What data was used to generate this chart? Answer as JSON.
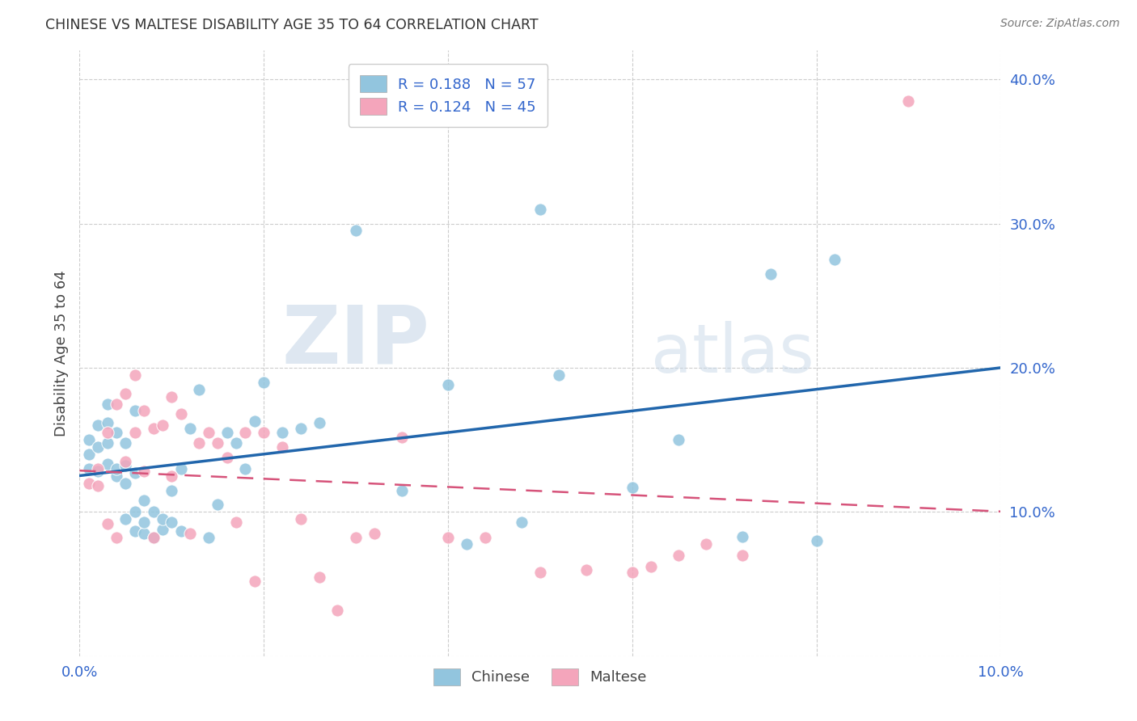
{
  "title": "CHINESE VS MALTESE DISABILITY AGE 35 TO 64 CORRELATION CHART",
  "source": "Source: ZipAtlas.com",
  "ylabel": "Disability Age 35 to 64",
  "xlim": [
    0.0,
    0.1
  ],
  "ylim": [
    0.0,
    0.42
  ],
  "xticks": [
    0.0,
    0.02,
    0.04,
    0.06,
    0.08,
    0.1
  ],
  "yticks": [
    0.0,
    0.1,
    0.2,
    0.3,
    0.4
  ],
  "chinese_color": "#92c5de",
  "maltese_color": "#f4a5bb",
  "trend_chinese_color": "#2166ac",
  "trend_maltese_color": "#d6537a",
  "legend_R_chinese": "0.188",
  "legend_N_chinese": "57",
  "legend_R_maltese": "0.124",
  "legend_N_maltese": "45",
  "watermark_zip": "ZIP",
  "watermark_atlas": "atlas",
  "chinese_x": [
    0.001,
    0.001,
    0.001,
    0.002,
    0.002,
    0.002,
    0.003,
    0.003,
    0.003,
    0.003,
    0.004,
    0.004,
    0.004,
    0.005,
    0.005,
    0.005,
    0.005,
    0.006,
    0.006,
    0.006,
    0.006,
    0.007,
    0.007,
    0.007,
    0.008,
    0.008,
    0.009,
    0.009,
    0.01,
    0.01,
    0.011,
    0.011,
    0.012,
    0.013,
    0.014,
    0.015,
    0.016,
    0.017,
    0.018,
    0.019,
    0.02,
    0.022,
    0.024,
    0.026,
    0.03,
    0.035,
    0.04,
    0.042,
    0.048,
    0.05,
    0.052,
    0.06,
    0.065,
    0.072,
    0.075,
    0.08,
    0.082
  ],
  "chinese_y": [
    0.13,
    0.14,
    0.15,
    0.128,
    0.145,
    0.16,
    0.133,
    0.148,
    0.162,
    0.175,
    0.125,
    0.13,
    0.155,
    0.095,
    0.12,
    0.132,
    0.148,
    0.087,
    0.1,
    0.127,
    0.17,
    0.085,
    0.093,
    0.108,
    0.082,
    0.1,
    0.088,
    0.095,
    0.093,
    0.115,
    0.087,
    0.13,
    0.158,
    0.185,
    0.082,
    0.105,
    0.155,
    0.148,
    0.13,
    0.163,
    0.19,
    0.155,
    0.158,
    0.162,
    0.295,
    0.115,
    0.188,
    0.078,
    0.093,
    0.31,
    0.195,
    0.117,
    0.15,
    0.083,
    0.265,
    0.08,
    0.275
  ],
  "maltese_x": [
    0.001,
    0.002,
    0.002,
    0.003,
    0.003,
    0.004,
    0.004,
    0.005,
    0.005,
    0.006,
    0.006,
    0.007,
    0.007,
    0.008,
    0.008,
    0.009,
    0.01,
    0.01,
    0.011,
    0.012,
    0.013,
    0.014,
    0.015,
    0.016,
    0.017,
    0.018,
    0.019,
    0.02,
    0.022,
    0.024,
    0.026,
    0.028,
    0.03,
    0.032,
    0.035,
    0.04,
    0.044,
    0.05,
    0.055,
    0.06,
    0.062,
    0.065,
    0.068,
    0.072,
    0.09
  ],
  "maltese_y": [
    0.12,
    0.118,
    0.13,
    0.092,
    0.155,
    0.082,
    0.175,
    0.135,
    0.182,
    0.155,
    0.195,
    0.128,
    0.17,
    0.082,
    0.158,
    0.16,
    0.125,
    0.18,
    0.168,
    0.085,
    0.148,
    0.155,
    0.148,
    0.138,
    0.093,
    0.155,
    0.052,
    0.155,
    0.145,
    0.095,
    0.055,
    0.032,
    0.082,
    0.085,
    0.152,
    0.082,
    0.082,
    0.058,
    0.06,
    0.058,
    0.062,
    0.07,
    0.078,
    0.07,
    0.385
  ],
  "background_color": "#ffffff",
  "grid_color": "#cccccc",
  "tick_color": "#3366cc",
  "label_color": "#555555"
}
